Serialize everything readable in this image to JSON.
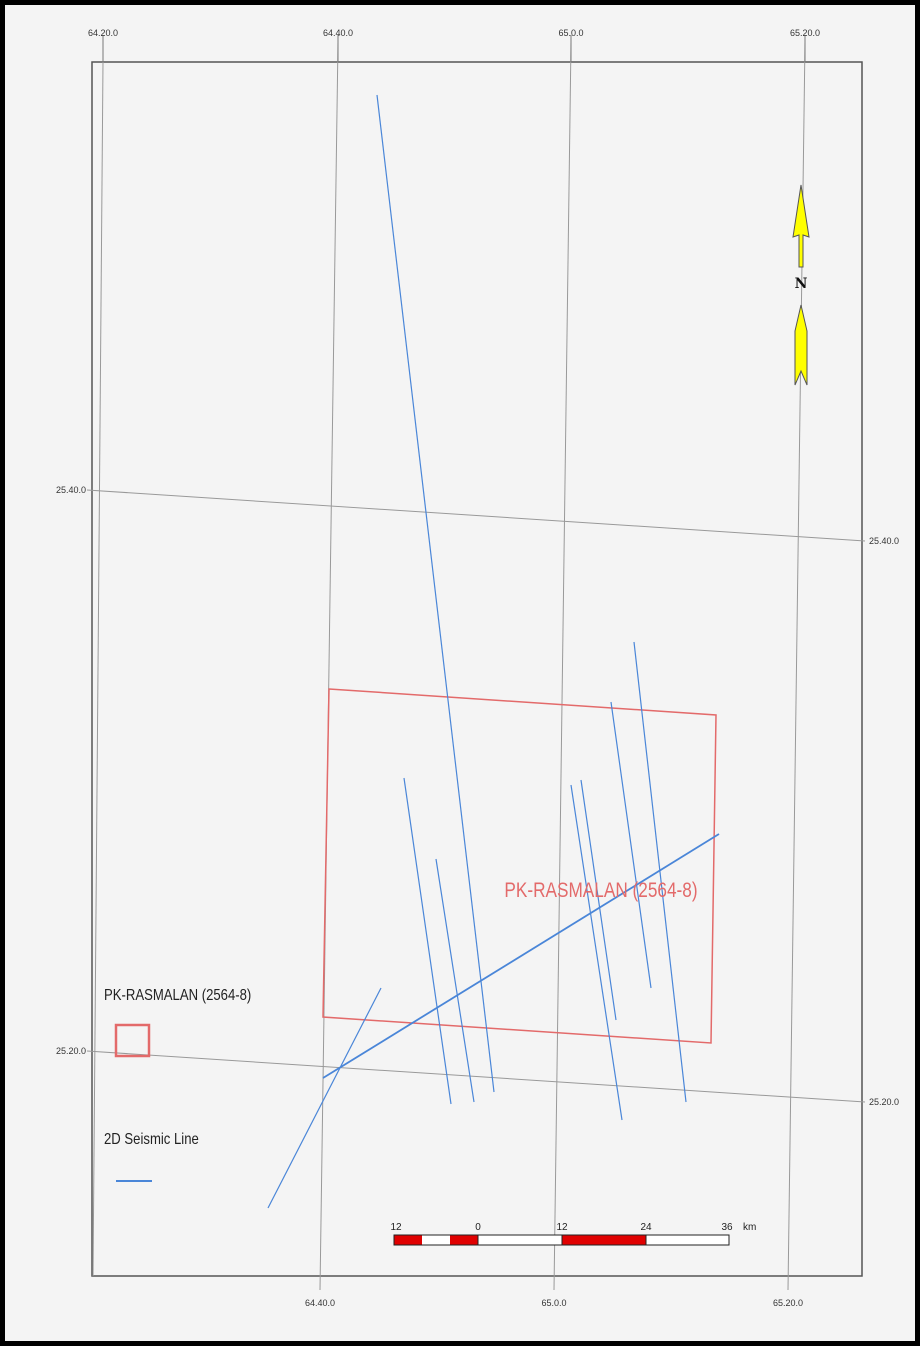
{
  "block": {
    "label": "PK-RASMALAN (2564-8)",
    "color": "#e36a6a"
  },
  "seismic": {
    "color": "#4a86d8"
  },
  "graticule": {
    "top_lon": [
      "64.20.0",
      "64.40.0",
      "65.0.0",
      "65.20.0"
    ],
    "bottom_lon": [
      "64.40.0",
      "65.0.0",
      "65.20.0"
    ],
    "left_lat": [
      "25.40.0",
      "25.20.0"
    ],
    "right_lat": [
      "25.40.0",
      "25.20.0"
    ]
  },
  "north_arrow": {
    "label": "N",
    "color": "#ffff00"
  },
  "legend": {
    "block_label": "PK-RASMALAN (2564-8)",
    "seismic_label": "2D Seismic Line"
  },
  "scale_bar": {
    "ticks": [
      "12",
      "0",
      "12",
      "24",
      "36"
    ],
    "unit": "km",
    "color": "#e00000"
  }
}
